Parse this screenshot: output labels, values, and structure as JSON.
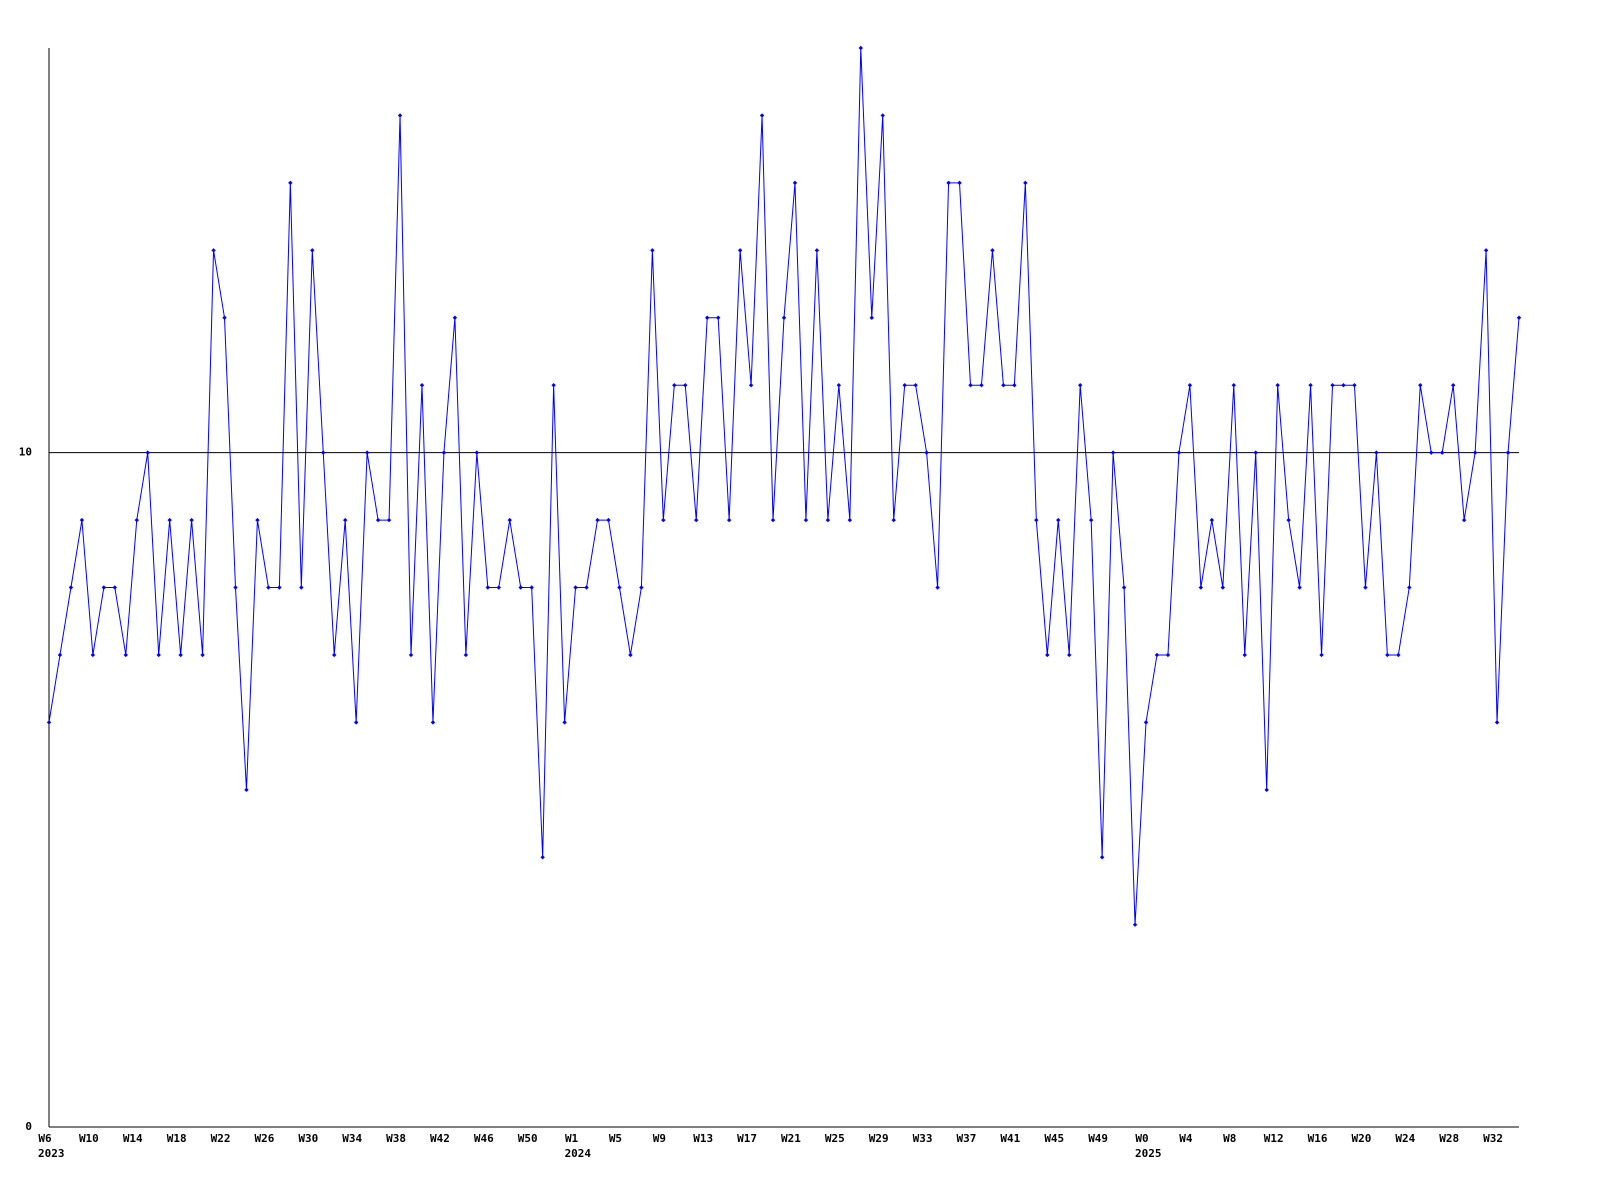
{
  "chart_data": {
    "type": "line",
    "categories": [
      "W6",
      null,
      null,
      null,
      "W10",
      null,
      null,
      null,
      "W14",
      null,
      null,
      null,
      "W18",
      null,
      null,
      null,
      "W22",
      null,
      null,
      null,
      "W26",
      null,
      null,
      null,
      "W30",
      null,
      null,
      null,
      "W34",
      null,
      null,
      null,
      "W38",
      null,
      null,
      null,
      "W42",
      null,
      null,
      null,
      "W46",
      null,
      null,
      null,
      "W50",
      null,
      null,
      null,
      "W1",
      null,
      null,
      null,
      "W5",
      null,
      null,
      null,
      "W9",
      null,
      null,
      null,
      "W13",
      null,
      null,
      null,
      "W17",
      null,
      null,
      null,
      "W21",
      null,
      null,
      null,
      "W25",
      null,
      null,
      null,
      "W29",
      null,
      null,
      null,
      "W33",
      null,
      null,
      null,
      "W37",
      null,
      null,
      null,
      "W41",
      null,
      null,
      null,
      "W45",
      null,
      null,
      null,
      "W49",
      null,
      null,
      null,
      "W0",
      null,
      null,
      null,
      "W4",
      null,
      null,
      null,
      "W8",
      null,
      null,
      null,
      "W12",
      null,
      null,
      null,
      "W16",
      null,
      null,
      null,
      "W20",
      null,
      null,
      null,
      "W24",
      null,
      null,
      null,
      "W28",
      null,
      null,
      null,
      "W32",
      null,
      null
    ],
    "x_groups": [
      {
        "label": "2023",
        "first": 0
      },
      {
        "label": "2024",
        "first": 48
      },
      {
        "label": "2025",
        "first": 100
      }
    ],
    "series": [
      {
        "color": "#0000ff",
        "values": [
          6,
          7,
          8,
          9,
          7,
          8,
          8,
          7,
          9,
          10,
          7,
          9,
          7,
          9,
          7,
          13,
          12,
          8,
          5,
          9,
          8,
          8,
          14,
          8,
          13,
          10,
          7,
          9,
          6,
          10,
          9,
          9,
          15,
          7,
          11,
          6,
          10,
          12,
          7,
          10,
          8,
          8,
          9,
          8,
          8,
          4,
          11,
          6,
          8,
          8,
          9,
          9,
          8,
          7,
          8,
          13,
          9,
          11,
          11,
          9,
          12,
          12,
          9,
          13,
          11,
          15,
          9,
          12,
          14,
          9,
          13,
          9,
          11,
          9,
          16,
          12,
          15,
          9,
          11,
          11,
          10,
          8,
          14,
          14,
          11,
          11,
          13,
          11,
          11,
          14,
          9,
          7,
          9,
          7,
          11,
          9,
          4,
          10,
          8,
          3,
          6,
          7,
          7,
          10,
          11,
          8,
          9,
          8,
          11,
          7,
          10,
          5,
          11,
          9,
          8,
          11,
          7,
          11,
          11,
          11,
          8,
          10,
          7,
          7,
          8,
          11,
          10,
          10,
          11,
          9,
          10,
          13,
          6,
          10,
          12
        ]
      }
    ],
    "ylim": [
      0,
      16
    ],
    "yticks": [
      0,
      10
    ],
    "grid": true
  }
}
